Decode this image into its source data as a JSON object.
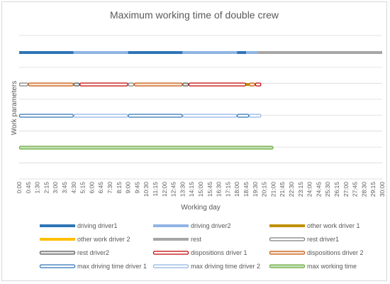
{
  "chart_data": {
    "type": "gantt",
    "title": "Maximum working time of double crew",
    "xlabel": "Working day",
    "ylabel": "Work parameters",
    "x_unit": "hours",
    "xlim": [
      0,
      30
    ],
    "x_tick_labels": [
      "0:00",
      "0:45",
      "1:30",
      "2:15",
      "3:00",
      "3:45",
      "4:30",
      "5:15",
      "6:00",
      "6:45",
      "7:30",
      "8:15",
      "9:00",
      "9:45",
      "10:30",
      "11:15",
      "12:00",
      "12:45",
      "13:30",
      "14:15",
      "15:00",
      "15:45",
      "16:30",
      "17:15",
      "18:00",
      "18:45",
      "19:30",
      "20:15",
      "21:00",
      "21:45",
      "22:30",
      "23:15",
      "24:00",
      "24:45",
      "25:30",
      "26:15",
      "27:00",
      "27:45",
      "28:30",
      "29:15",
      "30:00"
    ],
    "grid": true,
    "legend_position": "bottom",
    "rows": [
      {
        "segments": [
          {
            "series": "driving driver1",
            "start": 0,
            "end": 4.5
          },
          {
            "series": "driving driver2",
            "start": 4.5,
            "end": 9
          },
          {
            "series": "driving driver1",
            "start": 9,
            "end": 13.5
          },
          {
            "series": "driving driver2",
            "start": 13.5,
            "end": 18
          },
          {
            "series": "driving driver1",
            "start": 18,
            "end": 18.75
          },
          {
            "series": "driving driver2",
            "start": 18.75,
            "end": 19.75
          },
          {
            "series": "rest",
            "start": 19.75,
            "end": 30
          }
        ]
      },
      {
        "segments": [
          {
            "series": "rest driver1",
            "start": 0,
            "end": 0.75
          },
          {
            "series": "dispositions driver 2",
            "start": 0.75,
            "end": 4.5
          },
          {
            "series": "rest driver2",
            "start": 4.5,
            "end": 5
          },
          {
            "series": "dispositions driver 1",
            "start": 5,
            "end": 9
          },
          {
            "series": "rest driver1",
            "start": 9,
            "end": 9.5
          },
          {
            "series": "dispositions driver 2",
            "start": 9.5,
            "end": 13.5
          },
          {
            "series": "rest driver2",
            "start": 13.5,
            "end": 14
          },
          {
            "series": "dispositions driver 1",
            "start": 14,
            "end": 18.75
          },
          {
            "series": "other work driver 1",
            "start": 18.75,
            "end": 19
          },
          {
            "series": "dispositions driver 2",
            "start": 19,
            "end": 19.5
          },
          {
            "series": "dispositions driver 1",
            "start": 19.5,
            "end": 20
          }
        ]
      },
      {
        "segments": [
          {
            "series": "max driving time driver 1",
            "start": 0,
            "end": 4.5
          },
          {
            "series": "max driving time driver 2",
            "start": 4.5,
            "end": 9
          },
          {
            "series": "max driving time driver 1",
            "start": 9,
            "end": 13.5
          },
          {
            "series": "max driving time driver 2",
            "start": 13.5,
            "end": 18
          },
          {
            "series": "max driving time driver 1",
            "start": 18,
            "end": 19
          },
          {
            "series": "max driving time driver 2",
            "start": 19,
            "end": 20
          }
        ]
      },
      {
        "segments": [
          {
            "series": "max working time",
            "start": 0,
            "end": 21
          }
        ]
      }
    ],
    "legend": [
      {
        "name": "driving driver1",
        "color": "#2e75b6",
        "style": "solid"
      },
      {
        "name": "driving driver2",
        "color": "#8fb4e3",
        "style": "solid"
      },
      {
        "name": "other work driver 1",
        "color": "#bf9000",
        "style": "solid"
      },
      {
        "name": "other work driver 2",
        "color": "#ffc000",
        "style": "solid"
      },
      {
        "name": "rest",
        "color": "#a6a6a6",
        "style": "solid"
      },
      {
        "name": "rest driver1",
        "color": "#7f7f7f",
        "style": "outline",
        "fill": "#ffffff"
      },
      {
        "name": "rest driver2",
        "color": "#595959",
        "style": "outline",
        "fill": "#e7e6e6"
      },
      {
        "name": "dispositions driver 1",
        "color": "#c00000",
        "style": "outline",
        "fill": "#ffffff"
      },
      {
        "name": "dispositions driver 2",
        "color": "#c55a11",
        "style": "outline",
        "fill": "#fbe5d6"
      },
      {
        "name": "max driving time driver 1",
        "color": "#2e75b6",
        "style": "outline",
        "fill": "#ffffff"
      },
      {
        "name": "max driving time driver 2",
        "color": "#8fb4e3",
        "style": "outline",
        "fill": "#ffffff"
      },
      {
        "name": "max working time",
        "color": "#70ad47",
        "style": "outline",
        "fill": "#c5e0b4"
      }
    ]
  }
}
